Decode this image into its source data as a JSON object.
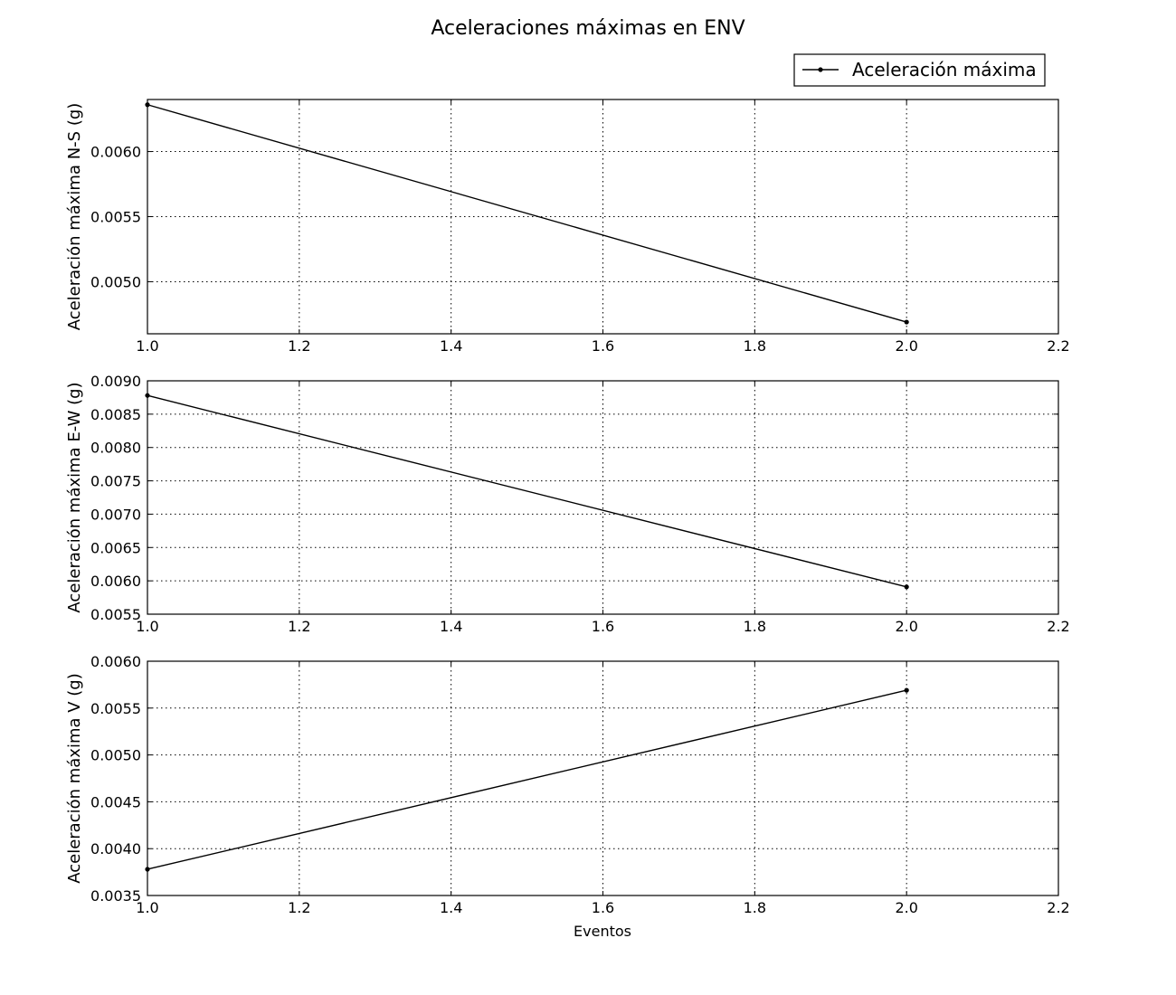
{
  "figure": {
    "title": "Aceleraciones máximas en ENV",
    "legend": {
      "label": "Aceleración máxima",
      "placement": "top-right"
    },
    "xlabel": "Eventos"
  },
  "chart_data": [
    {
      "type": "line",
      "ylabel": "Aceleración máxima N-S (g)",
      "xlabel": "",
      "xlim": [
        1.0,
        2.2
      ],
      "ylim": [
        0.0046,
        0.0064
      ],
      "xticks": [
        "1.0",
        "1.2",
        "1.4",
        "1.6",
        "1.8",
        "2.0",
        "2.2"
      ],
      "yticks": [
        "0.0050",
        "0.0055",
        "0.0060"
      ],
      "grid": true,
      "series": [
        {
          "name": "Aceleración máxima",
          "x": [
            1.0,
            2.0
          ],
          "y": [
            0.00636,
            0.00469
          ]
        }
      ]
    },
    {
      "type": "line",
      "ylabel": "Aceleración máxima E-W (g)",
      "xlabel": "",
      "xlim": [
        1.0,
        2.2
      ],
      "ylim": [
        0.0055,
        0.009
      ],
      "xticks": [
        "1.0",
        "1.2",
        "1.4",
        "1.6",
        "1.8",
        "2.0",
        "2.2"
      ],
      "yticks": [
        "0.0055",
        "0.0060",
        "0.0065",
        "0.0070",
        "0.0075",
        "0.0080",
        "0.0085",
        "0.0090"
      ],
      "grid": true,
      "series": [
        {
          "name": "Aceleración máxima",
          "x": [
            1.0,
            2.0
          ],
          "y": [
            0.00878,
            0.00591
          ]
        }
      ]
    },
    {
      "type": "line",
      "ylabel": "Aceleración máxima V (g)",
      "xlabel": "Eventos",
      "xlim": [
        1.0,
        2.2
      ],
      "ylim": [
        0.0035,
        0.006
      ],
      "xticks": [
        "1.0",
        "1.2",
        "1.4",
        "1.6",
        "1.8",
        "2.0",
        "2.2"
      ],
      "yticks": [
        "0.0035",
        "0.0040",
        "0.0045",
        "0.0050",
        "0.0055",
        "0.0060"
      ],
      "grid": true,
      "series": [
        {
          "name": "Aceleración máxima",
          "x": [
            1.0,
            2.0
          ],
          "y": [
            0.00378,
            0.00569
          ]
        }
      ]
    }
  ]
}
